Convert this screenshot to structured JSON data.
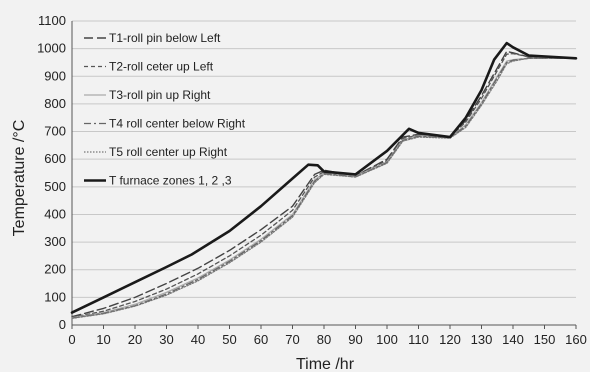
{
  "chart_data": {
    "type": "line",
    "xlabel": "Time /hr",
    "ylabel": "Temperature /°C",
    "xlim": [
      0,
      160
    ],
    "ylim": [
      0,
      1100
    ],
    "xticks": [
      0,
      10,
      20,
      30,
      40,
      50,
      60,
      70,
      80,
      90,
      100,
      110,
      120,
      130,
      140,
      150,
      160
    ],
    "yticks": [
      0,
      100,
      200,
      300,
      400,
      500,
      600,
      700,
      800,
      900,
      1000,
      1100
    ],
    "grid": "horizontal",
    "legend": "top-left",
    "series": [
      {
        "name": "T1-roll pin below Left",
        "style": "long-dash",
        "color": "#444444",
        "points": [
          [
            0,
            30
          ],
          [
            10,
            60
          ],
          [
            20,
            100
          ],
          [
            30,
            150
          ],
          [
            40,
            205
          ],
          [
            50,
            270
          ],
          [
            60,
            345
          ],
          [
            70,
            430
          ],
          [
            77,
            545
          ],
          [
            80,
            560
          ],
          [
            90,
            540
          ],
          [
            100,
            600
          ],
          [
            105,
            680
          ],
          [
            110,
            690
          ],
          [
            120,
            680
          ],
          [
            125,
            740
          ],
          [
            130,
            830
          ],
          [
            135,
            930
          ],
          [
            138,
            990
          ],
          [
            140,
            985
          ],
          [
            145,
            970
          ],
          [
            160,
            965
          ]
        ]
      },
      {
        "name": "T2-roll ceter up Left",
        "style": "short-dash",
        "color": "#555555",
        "points": [
          [
            0,
            28
          ],
          [
            10,
            50
          ],
          [
            20,
            85
          ],
          [
            30,
            130
          ],
          [
            40,
            185
          ],
          [
            50,
            250
          ],
          [
            60,
            325
          ],
          [
            70,
            415
          ],
          [
            77,
            535
          ],
          [
            80,
            555
          ],
          [
            90,
            540
          ],
          [
            100,
            595
          ],
          [
            105,
            675
          ],
          [
            110,
            688
          ],
          [
            120,
            680
          ],
          [
            125,
            735
          ],
          [
            130,
            820
          ],
          [
            135,
            920
          ],
          [
            138,
            980
          ],
          [
            140,
            982
          ],
          [
            145,
            970
          ],
          [
            160,
            965
          ]
        ]
      },
      {
        "name": "T3-roll pin up Right",
        "style": "solid-light",
        "color": "#aaaaaa",
        "points": [
          [
            0,
            26
          ],
          [
            10,
            45
          ],
          [
            20,
            75
          ],
          [
            30,
            118
          ],
          [
            40,
            170
          ],
          [
            50,
            235
          ],
          [
            60,
            310
          ],
          [
            70,
            400
          ],
          [
            77,
            525
          ],
          [
            80,
            550
          ],
          [
            90,
            538
          ],
          [
            100,
            590
          ],
          [
            105,
            670
          ],
          [
            110,
            685
          ],
          [
            120,
            678
          ],
          [
            125,
            725
          ],
          [
            130,
            805
          ],
          [
            135,
            900
          ],
          [
            138,
            955
          ],
          [
            140,
            960
          ],
          [
            145,
            965
          ],
          [
            160,
            965
          ]
        ]
      },
      {
        "name": "T4 roll center below Right",
        "style": "dash-dot",
        "color": "#666666",
        "points": [
          [
            0,
            25
          ],
          [
            10,
            42
          ],
          [
            20,
            70
          ],
          [
            30,
            112
          ],
          [
            40,
            165
          ],
          [
            50,
            230
          ],
          [
            60,
            305
          ],
          [
            70,
            395
          ],
          [
            77,
            520
          ],
          [
            80,
            548
          ],
          [
            90,
            536
          ],
          [
            100,
            588
          ],
          [
            105,
            668
          ],
          [
            110,
            683
          ],
          [
            120,
            677
          ],
          [
            125,
            720
          ],
          [
            130,
            800
          ],
          [
            135,
            895
          ],
          [
            138,
            950
          ],
          [
            140,
            958
          ],
          [
            145,
            965
          ],
          [
            160,
            965
          ]
        ]
      },
      {
        "name": "T5 roll center up Right",
        "style": "dotted",
        "color": "#777777",
        "points": [
          [
            0,
            24
          ],
          [
            10,
            40
          ],
          [
            20,
            68
          ],
          [
            30,
            108
          ],
          [
            40,
            160
          ],
          [
            50,
            225
          ],
          [
            60,
            300
          ],
          [
            70,
            390
          ],
          [
            77,
            515
          ],
          [
            80,
            545
          ],
          [
            90,
            535
          ],
          [
            100,
            585
          ],
          [
            105,
            665
          ],
          [
            110,
            680
          ],
          [
            120,
            676
          ],
          [
            125,
            715
          ],
          [
            130,
            795
          ],
          [
            135,
            885
          ],
          [
            138,
            945
          ],
          [
            140,
            955
          ],
          [
            145,
            965
          ],
          [
            160,
            965
          ]
        ]
      },
      {
        "name": "T furnace zones 1, 2 ,3",
        "style": "solid-thick",
        "color": "#1a1a1a",
        "points": [
          [
            0,
            45
          ],
          [
            10,
            100
          ],
          [
            20,
            155
          ],
          [
            30,
            210
          ],
          [
            38,
            255
          ],
          [
            50,
            340
          ],
          [
            60,
            430
          ],
          [
            70,
            530
          ],
          [
            75,
            580
          ],
          [
            78,
            578
          ],
          [
            80,
            555
          ],
          [
            90,
            545
          ],
          [
            100,
            630
          ],
          [
            107,
            710
          ],
          [
            110,
            695
          ],
          [
            120,
            680
          ],
          [
            125,
            750
          ],
          [
            130,
            850
          ],
          [
            134,
            960
          ],
          [
            138,
            1020
          ],
          [
            140,
            1005
          ],
          [
            145,
            975
          ],
          [
            160,
            965
          ]
        ]
      }
    ]
  }
}
